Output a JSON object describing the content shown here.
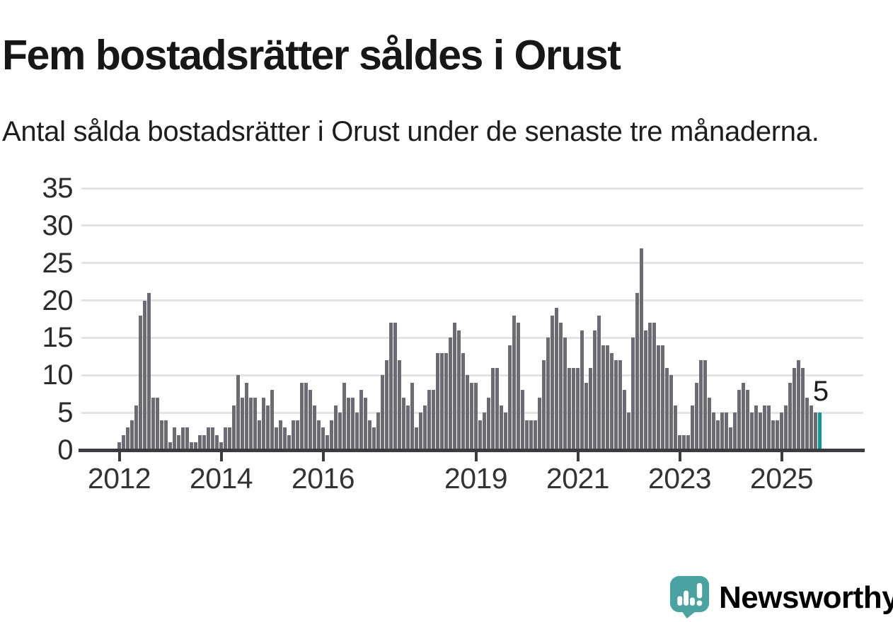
{
  "title": "Fem bostadsrätter såldes i Orust",
  "subtitle": "Antal sålda bostadsrätter i Orust under de senaste tre månaderna.",
  "annotation": {
    "last_value_label": "5"
  },
  "branding": {
    "name": "Newsworthy",
    "icon": "newsworthy-speech-bubble-chart-icon"
  },
  "colors": {
    "bar": "#6b6b73",
    "highlight": "#0f9a93",
    "grid": "#e4e4e4",
    "axis": "#3b3b41",
    "title_text": "#171717",
    "logo": "#4aa3a0"
  },
  "chart_data": {
    "type": "bar",
    "title": "Fem bostadsrätter såldes i Orust",
    "subtitle": "Antal sålda bostadsrätter i Orust under de senaste tre månaderna.",
    "xlabel": "",
    "ylabel": "",
    "ylim": [
      0,
      35
    ],
    "grid": true,
    "frequency": "monthly",
    "start_year": 2012,
    "start_month": 1,
    "y_ticks": [
      0,
      5,
      10,
      15,
      20,
      25,
      30,
      35
    ],
    "x_tick_years": [
      2012,
      2014,
      2016,
      2019,
      2021,
      2023,
      2025
    ],
    "values": [
      1,
      2,
      3,
      4,
      6,
      18,
      20,
      21,
      7,
      7,
      4,
      4,
      1,
      3,
      2,
      3,
      3,
      1,
      1,
      2,
      2,
      3,
      3,
      2,
      1,
      3,
      3,
      6,
      10,
      7,
      9,
      7,
      7,
      4,
      7,
      6,
      8,
      3,
      4,
      3,
      2,
      4,
      4,
      9,
      9,
      8,
      6,
      4,
      3,
      2,
      4,
      6,
      5,
      9,
      7,
      7,
      5,
      8,
      7,
      4,
      3,
      5,
      10,
      12,
      17,
      17,
      12,
      7,
      6,
      9,
      3,
      5,
      6,
      8,
      8,
      13,
      13,
      13,
      15,
      17,
      16,
      13,
      10,
      9,
      9,
      4,
      5,
      7,
      11,
      11,
      6,
      5,
      14,
      18,
      17,
      8,
      4,
      4,
      4,
      7,
      12,
      15,
      18,
      19,
      17,
      15,
      11,
      11,
      11,
      16,
      9,
      11,
      16,
      18,
      14,
      14,
      13,
      12,
      12,
      8,
      5,
      15,
      21,
      27,
      16,
      17,
      17,
      14,
      14,
      11,
      10,
      6,
      2,
      2,
      2,
      6,
      9,
      12,
      12,
      7,
      5,
      4,
      5,
      5,
      3,
      5,
      8,
      9,
      8,
      5,
      6,
      5,
      6,
      6,
      4,
      4,
      5,
      6,
      9,
      11,
      12,
      11,
      7,
      6,
      5,
      5
    ],
    "highlight_index": 165,
    "highlight_value": 5,
    "annotation_label": "5",
    "legend": "none"
  }
}
